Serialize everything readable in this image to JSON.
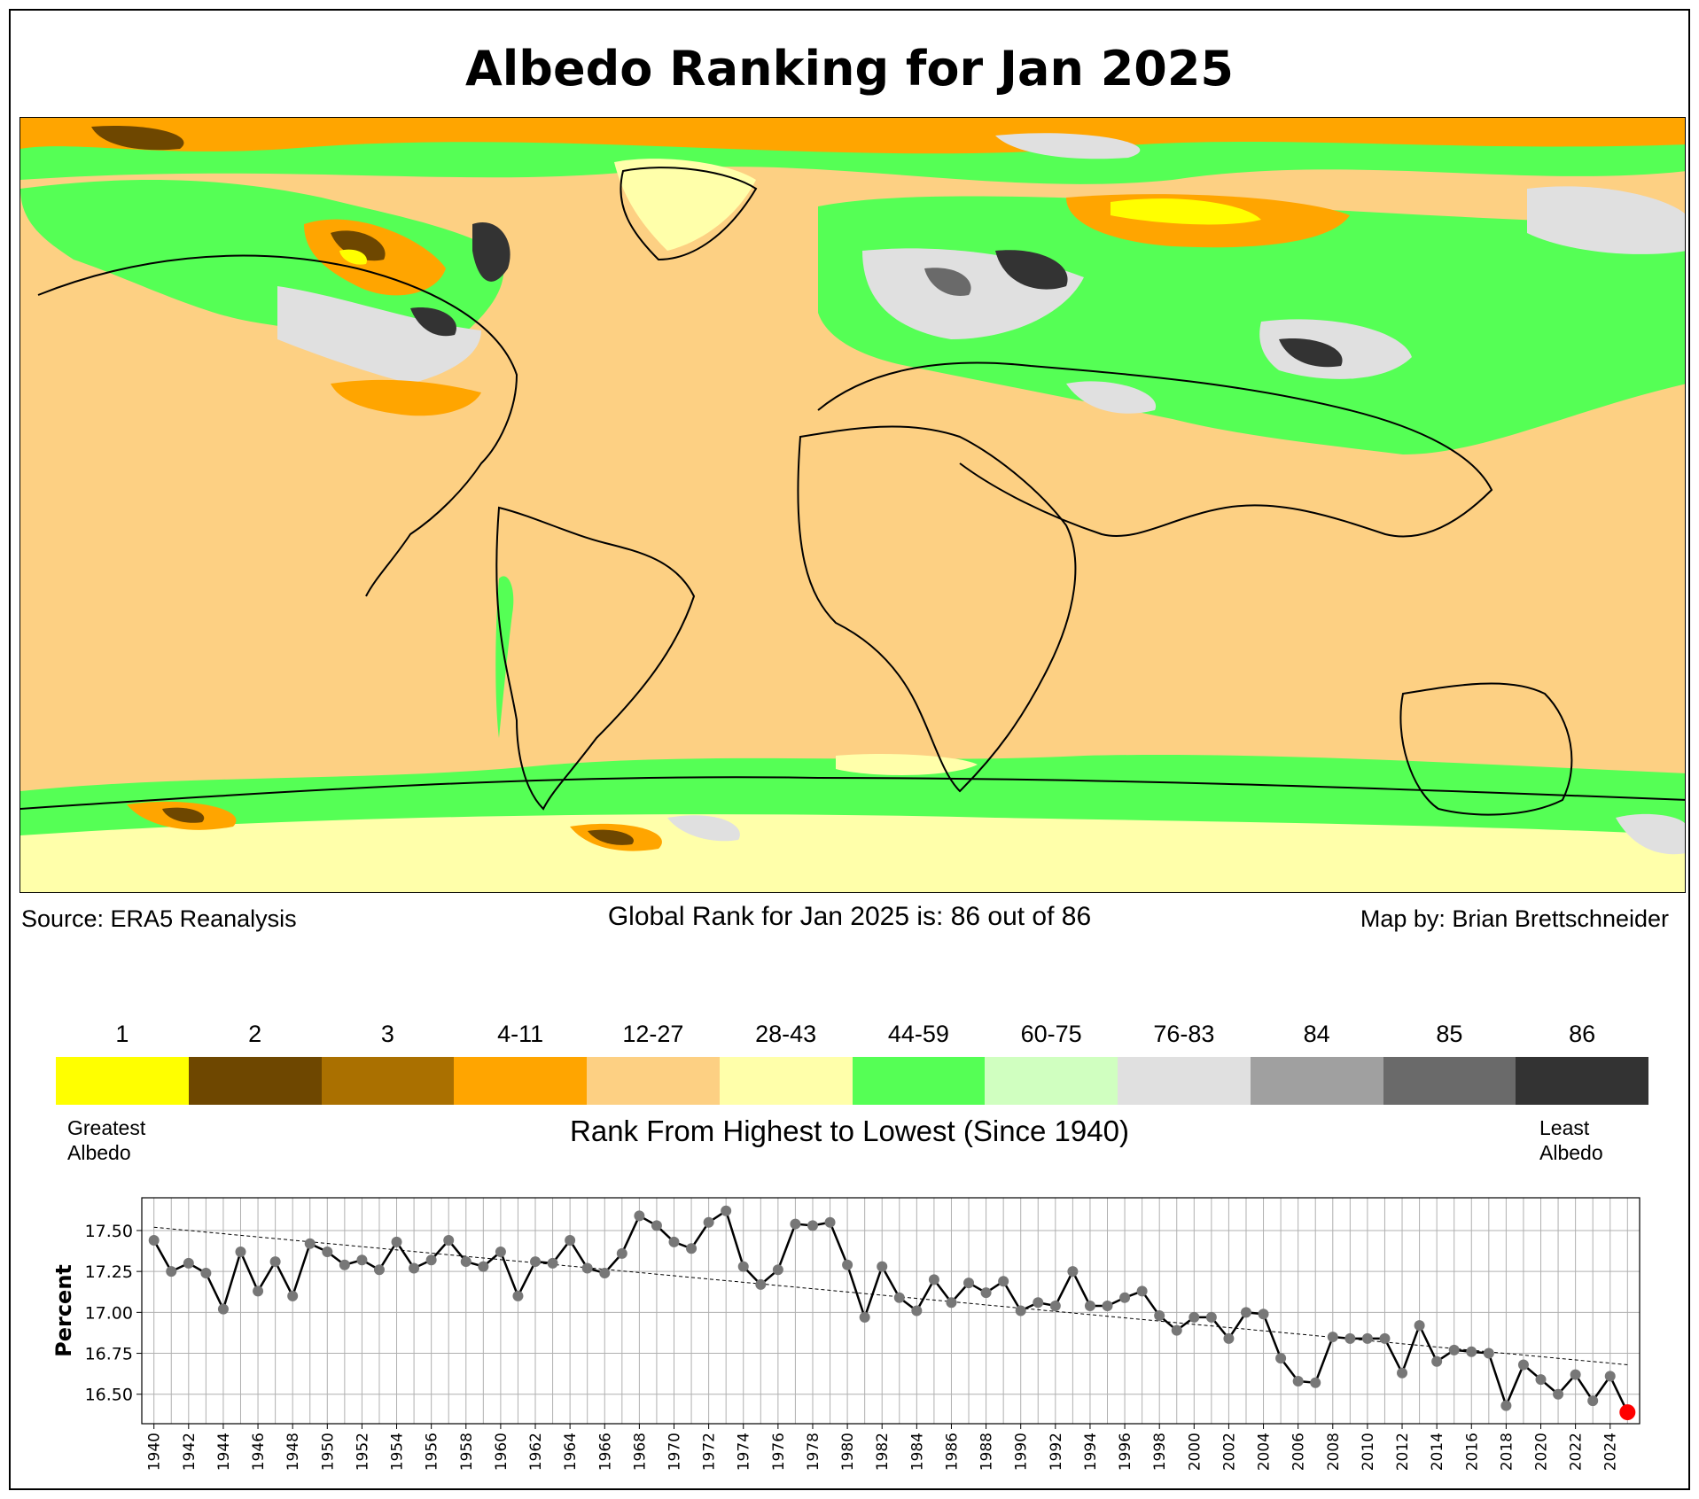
{
  "title": "Albedo Ranking for Jan 2025",
  "footer": {
    "source": "Source: ERA5 Reanalysis",
    "global_rank": "Global Rank for Jan 2025 is: 86 out of 86",
    "credit": "Map by: Brian Brettschneider"
  },
  "legend": {
    "bins": [
      {
        "label": "1",
        "color": "#ffff00"
      },
      {
        "label": "2",
        "color": "#6e4700"
      },
      {
        "label": "3",
        "color": "#aa7000"
      },
      {
        "label": "4-11",
        "color": "#ffa500"
      },
      {
        "label": "12-27",
        "color": "#fdd083"
      },
      {
        "label": "28-43",
        "color": "#ffffaa"
      },
      {
        "label": "44-59",
        "color": "#55ff55"
      },
      {
        "label": "60-75",
        "color": "#d0ffc0"
      },
      {
        "label": "76-83",
        "color": "#e0e0e0"
      },
      {
        "label": "84",
        "color": "#a0a0a0"
      },
      {
        "label": "85",
        "color": "#6a6a6a"
      },
      {
        "label": "86",
        "color": "#333333"
      }
    ],
    "left_end": "Greatest\nAlbedo",
    "right_end": "Least\nAlbedo",
    "caption": "Rank From Highest to Lowest (Since 1940)"
  },
  "chart_data": {
    "type": "line",
    "ylabel": "Percent",
    "ylim": [
      16.32,
      17.7
    ],
    "xlim": [
      1939.3,
      2025.7
    ],
    "yticks": [
      16.5,
      16.75,
      17.0,
      17.25,
      17.5
    ],
    "ytick_labels": [
      "16.50",
      "16.75",
      "17.00",
      "17.25",
      "17.50"
    ],
    "xtick_labels": [
      "1940",
      "1942",
      "1944",
      "1946",
      "1948",
      "1950",
      "1952",
      "1954",
      "1956",
      "1958",
      "1960",
      "1962",
      "1964",
      "1966",
      "1968",
      "1970",
      "1972",
      "1974",
      "1976",
      "1978",
      "1980",
      "1982",
      "1984",
      "1986",
      "1988",
      "1990",
      "1992",
      "1994",
      "1996",
      "1998",
      "2000",
      "2002",
      "2004",
      "2006",
      "2008",
      "2010",
      "2012",
      "2014",
      "2016",
      "2018",
      "2020",
      "2022",
      "2024"
    ],
    "grid": true,
    "x_start": 1940,
    "values": [
      17.44,
      17.25,
      17.3,
      17.24,
      17.02,
      17.37,
      17.13,
      17.31,
      17.1,
      17.42,
      17.37,
      17.29,
      17.32,
      17.26,
      17.43,
      17.27,
      17.32,
      17.44,
      17.31,
      17.28,
      17.37,
      17.1,
      17.31,
      17.3,
      17.44,
      17.27,
      17.24,
      17.36,
      17.59,
      17.53,
      17.43,
      17.39,
      17.55,
      17.62,
      17.28,
      17.17,
      17.26,
      17.54,
      17.53,
      17.55,
      17.29,
      16.97,
      17.28,
      17.09,
      17.01,
      17.2,
      17.06,
      17.18,
      17.12,
      17.19,
      17.01,
      17.06,
      17.04,
      17.25,
      17.04,
      17.04,
      17.09,
      17.13,
      16.98,
      16.89,
      16.97,
      16.97,
      16.84,
      17.0,
      16.99,
      16.72,
      16.58,
      16.57,
      16.85,
      16.84,
      16.84,
      16.84,
      16.63,
      16.92,
      16.7,
      16.77,
      16.76,
      16.75,
      16.43,
      16.68,
      16.59,
      16.5,
      16.62,
      16.46,
      16.61,
      16.39
    ],
    "trend": [
      17.52,
      16.68
    ],
    "highlight_last_color": "#ff0000",
    "line_color": "#000000",
    "marker_color": "#777777"
  }
}
